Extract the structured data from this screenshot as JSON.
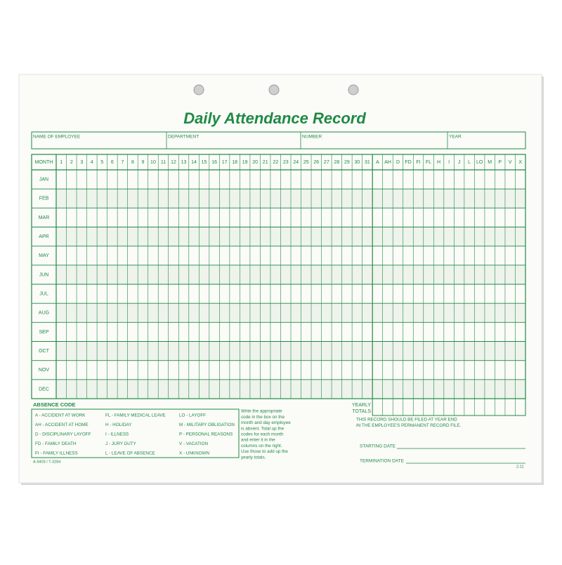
{
  "title": "Daily Attendance Record",
  "info_fields": [
    "NAME OF EMPLOYEE",
    "DEPARTMENT",
    "NUMBER",
    "YEAR"
  ],
  "table": {
    "header": [
      "MONTH",
      "1",
      "2",
      "3",
      "4",
      "5",
      "6",
      "7",
      "8",
      "9",
      "10",
      "11",
      "12",
      "13",
      "14",
      "15",
      "16",
      "17",
      "18",
      "19",
      "20",
      "21",
      "22",
      "23",
      "24",
      "25",
      "26",
      "27",
      "28",
      "29",
      "30",
      "31",
      "A",
      "AH",
      "D",
      "FD",
      "FI",
      "FL",
      "H",
      "I",
      "J",
      "L",
      "LO",
      "M",
      "P",
      "V",
      "X"
    ],
    "months": [
      "JAN",
      "FEB",
      "MAR",
      "APR",
      "MAY",
      "JUN",
      "JUL",
      "AUG",
      "SEP",
      "OCT",
      "NOV",
      "DEC"
    ]
  },
  "totals_label": [
    "YEARLY",
    "TOTALS"
  ],
  "absence_code": {
    "title": "ABSENCE CODE",
    "codes": [
      "A - ACCIDENT AT WORK",
      "AH - ACCIDENT AT HOME",
      "D - DISCIPLINARY LAYOFF",
      "FD - FAMILY DEATH",
      "FI - FAMILY ILLNESS",
      "FL - FAMILY MEDICAL LEAVE",
      "H - HOLIDAY",
      "I - ILLNESS",
      "J - JURY DUTY",
      "L - LEAVE OF ABSENCE",
      "LO - LAYOFF",
      "M - MILITARY OBLIGATION",
      "P - PERSONAL REASONS",
      "V - VACATION",
      "X - UNKNOWN"
    ]
  },
  "instructions": [
    "Write the appropriate",
    "code in the box on the",
    "month and day employee",
    "is absent.  Total up the",
    "codes for each month",
    "and enter it in the",
    "columns on the right.",
    "Use those to add up the",
    "yearly totals."
  ],
  "filing_note": [
    "THIS RECORD SHOULD BE FILED AT YEAR END",
    "IN THE EMPLOYEE'S PERMANENT RECORD FILE."
  ],
  "dates": [
    "STARTING DATE",
    "TERMINATION DATE"
  ],
  "form_number": "A-9403 / T-3284",
  "revision": "2-11"
}
